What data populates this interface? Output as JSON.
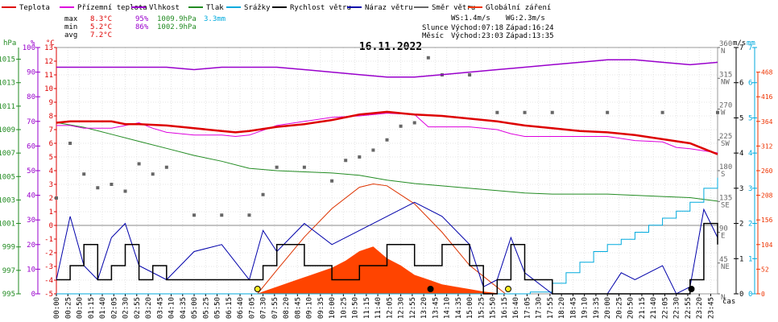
{
  "chart_data": {
    "type": "line",
    "title": "16.11.2022",
    "legend": [
      {
        "label": "Teplota",
        "color": "#dd0000"
      },
      {
        "label": "Přízemní teplota",
        "color": "#dd00dd"
      },
      {
        "label": "Vlhkost",
        "color": "#9900cc"
      },
      {
        "label": "Tlak",
        "color": "#228b22"
      },
      {
        "label": "Srážky",
        "color": "#00aadd"
      },
      {
        "label": "Rychlost větru",
        "color": "#000000"
      },
      {
        "label": "Náraz větru",
        "color": "#0000aa"
      },
      {
        "label": "Směr větru",
        "color": "#666666"
      },
      {
        "label": "Globální záření",
        "color": "#ee3300"
      }
    ],
    "stats": {
      "max_label": "max",
      "min_label": "min",
      "avg_label": "avg",
      "max_temp": "8.3°C",
      "max_hum": "95%",
      "max_press": "1009.9hPa",
      "max_rain": "3.3mm",
      "min_temp": "5.2°C",
      "min_hum": "86%",
      "min_press": "1002.9hPa",
      "avg_temp": "7.2°C"
    },
    "info": {
      "ws": "WS:1.4m/s",
      "wg": "WG:2.3m/s",
      "sun_label": "Slunce",
      "sun_rise": "Východ:07:18",
      "sun_set": "Západ:16:24",
      "moon_label": "Měsíc",
      "moon_rise": "Východ:23:03",
      "moon_set": "Západ:13:35"
    },
    "axes": {
      "hpa_unit": "hPa",
      "pct_unit": "%",
      "temp_unit": "°C",
      "ms_unit": "m/s",
      "mm_unit": "mm",
      "time_unit": "čas",
      "hpa_ticks": [
        "995",
        "997",
        "999",
        "1001",
        "1003",
        "1005",
        "1007",
        "1009",
        "1011",
        "1013",
        "1015"
      ],
      "pct_ticks": [
        "0",
        "10",
        "20",
        "30",
        "40",
        "50",
        "60",
        "70",
        "80",
        "90",
        "100"
      ],
      "temp_ticks": [
        "-5",
        "-4",
        "-3",
        "-2",
        "-1",
        "0",
        "1",
        "2",
        "3",
        "4",
        "5",
        "6",
        "7",
        "8",
        "9",
        "10",
        "11",
        "12",
        "13"
      ],
      "dir_ticks": [
        {
          "deg": "0",
          "dir": "N"
        },
        {
          "deg": "45",
          "dir": "NE"
        },
        {
          "deg": "90",
          "dir": "E"
        },
        {
          "deg": "135",
          "dir": "SE"
        },
        {
          "deg": "180",
          "dir": "S"
        },
        {
          "deg": "225",
          "dir": "SW"
        },
        {
          "deg": "270",
          "dir": "W"
        },
        {
          "deg": "315",
          "dir": "NW"
        },
        {
          "deg": "360",
          "dir": "N"
        }
      ],
      "ms_ticks": [
        "0",
        "1",
        "2",
        "3",
        "4",
        "5",
        "6",
        "7"
      ],
      "rad_ticks": [
        "0",
        "52",
        "104",
        "156",
        "208",
        "260",
        "312",
        "364",
        "416",
        "468"
      ],
      "time_ticks": [
        "00:00",
        "00:25",
        "00:50",
        "01:15",
        "01:40",
        "02:05",
        "02:30",
        "02:55",
        "03:20",
        "03:45",
        "04:10",
        "04:35",
        "05:00",
        "05:25",
        "05:50",
        "06:15",
        "06:40",
        "07:05",
        "07:30",
        "07:55",
        "08:20",
        "08:45",
        "09:10",
        "09:35",
        "10:00",
        "10:25",
        "10:50",
        "11:15",
        "11:40",
        "12:05",
        "12:30",
        "12:55",
        "13:20",
        "13:45",
        "14:10",
        "14:35",
        "15:00",
        "15:25",
        "15:50",
        "16:15",
        "16:40",
        "17:05",
        "17:30",
        "17:55",
        "18:20",
        "18:45",
        "19:10",
        "19:35",
        "20:00",
        "20:25",
        "20:50",
        "21:15",
        "21:40",
        "22:05",
        "22:30",
        "22:55",
        "23:20",
        "23:45"
      ]
    },
    "ranges": {
      "temp": [
        -5,
        13
      ],
      "hpa": [
        995,
        1016
      ],
      "pct": [
        0,
        100
      ],
      "ms": [
        0,
        7
      ],
      "deg": [
        0,
        360
      ],
      "rad": [
        0,
        520
      ],
      "hours": [
        0,
        24
      ]
    },
    "series_temp": [
      [
        0,
        7.5
      ],
      [
        0.5,
        7.6
      ],
      [
        1,
        7.6
      ],
      [
        2,
        7.6
      ],
      [
        2.5,
        7.4
      ],
      [
        3,
        7.4
      ],
      [
        4,
        7.3
      ],
      [
        5,
        7.1
      ],
      [
        6,
        6.9
      ],
      [
        6.5,
        6.8
      ],
      [
        7,
        6.9
      ],
      [
        8,
        7.2
      ],
      [
        9,
        7.4
      ],
      [
        10,
        7.7
      ],
      [
        11,
        8.1
      ],
      [
        11.5,
        8.2
      ],
      [
        12,
        8.3
      ],
      [
        12.5,
        8.2
      ],
      [
        13,
        8.1
      ],
      [
        14,
        8
      ],
      [
        15,
        7.8
      ],
      [
        16,
        7.6
      ],
      [
        17,
        7.3
      ],
      [
        18,
        7.1
      ],
      [
        19,
        6.9
      ],
      [
        20,
        6.8
      ],
      [
        21,
        6.6
      ],
      [
        22,
        6.3
      ],
      [
        23,
        6
      ],
      [
        23.5,
        5.6
      ],
      [
        24,
        5.2
      ]
    ],
    "series_ground": [
      [
        0,
        7.3
      ],
      [
        0.5,
        7.3
      ],
      [
        1,
        7.1
      ],
      [
        2,
        7.1
      ],
      [
        3,
        7.5
      ],
      [
        3.5,
        7.1
      ],
      [
        4,
        6.8
      ],
      [
        5,
        6.6
      ],
      [
        6,
        6.6
      ],
      [
        6.5,
        6.5
      ],
      [
        7,
        6.6
      ],
      [
        8,
        7.3
      ],
      [
        9,
        7.6
      ],
      [
        10,
        7.9
      ],
      [
        11,
        8
      ],
      [
        12,
        8.2
      ],
      [
        13,
        8.1
      ],
      [
        13.5,
        7.2
      ],
      [
        14,
        7.2
      ],
      [
        15,
        7.2
      ],
      [
        16,
        7
      ],
      [
        16.5,
        6.7
      ],
      [
        17,
        6.5
      ],
      [
        18,
        6.5
      ],
      [
        19,
        6.5
      ],
      [
        20,
        6.5
      ],
      [
        21,
        6.2
      ],
      [
        22,
        6.1
      ],
      [
        22.5,
        5.7
      ],
      [
        23,
        5.6
      ],
      [
        24,
        5.3
      ]
    ],
    "series_humidity": [
      [
        0,
        92
      ],
      [
        1,
        92
      ],
      [
        2,
        92
      ],
      [
        3,
        92
      ],
      [
        4,
        92
      ],
      [
        5,
        91
      ],
      [
        6,
        92
      ],
      [
        7,
        92
      ],
      [
        8,
        92
      ],
      [
        9,
        91
      ],
      [
        10,
        90
      ],
      [
        11,
        89
      ],
      [
        12,
        88
      ],
      [
        13,
        88
      ],
      [
        14,
        89
      ],
      [
        15,
        90
      ],
      [
        16,
        91
      ],
      [
        17,
        92
      ],
      [
        18,
        93
      ],
      [
        19,
        94
      ],
      [
        20,
        95
      ],
      [
        21,
        95
      ],
      [
        22,
        94
      ],
      [
        23,
        93
      ],
      [
        24,
        94
      ]
    ],
    "series_pressure": [
      [
        0,
        1009.6
      ],
      [
        1,
        1009.2
      ],
      [
        2,
        1008.6
      ],
      [
        3,
        1008
      ],
      [
        4,
        1007.4
      ],
      [
        5,
        1006.8
      ],
      [
        6,
        1006.3
      ],
      [
        7,
        1005.7
      ],
      [
        8,
        1005.5
      ],
      [
        9,
        1005.4
      ],
      [
        10,
        1005.3
      ],
      [
        11,
        1005.1
      ],
      [
        12,
        1004.7
      ],
      [
        13,
        1004.4
      ],
      [
        14,
        1004.2
      ],
      [
        15,
        1004
      ],
      [
        16,
        1003.8
      ],
      [
        17,
        1003.6
      ],
      [
        18,
        1003.5
      ],
      [
        19,
        1003.5
      ],
      [
        20,
        1003.5
      ],
      [
        21,
        1003.4
      ],
      [
        22,
        1003.3
      ],
      [
        23,
        1003.2
      ],
      [
        24,
        1002.9
      ]
    ],
    "series_rain": [
      [
        0,
        0
      ],
      [
        16.3,
        0
      ],
      [
        17.2,
        0.05
      ],
      [
        18,
        0.3
      ],
      [
        18.5,
        0.6
      ],
      [
        19,
        0.9
      ],
      [
        19.5,
        1.2
      ],
      [
        20,
        1.4
      ],
      [
        20.5,
        1.55
      ],
      [
        21,
        1.75
      ],
      [
        21.5,
        1.95
      ],
      [
        22,
        2.15
      ],
      [
        22.5,
        2.35
      ],
      [
        23,
        2.6
      ],
      [
        23.5,
        3
      ],
      [
        24,
        3.3
      ]
    ],
    "series_wind": [
      [
        0,
        0.4
      ],
      [
        0.5,
        0.8
      ],
      [
        1,
        1.4
      ],
      [
        1.5,
        0.4
      ],
      [
        2,
        0.8
      ],
      [
        2.5,
        1.4
      ],
      [
        3,
        0.4
      ],
      [
        3.5,
        0.8
      ],
      [
        4,
        0.4
      ],
      [
        5,
        0.4
      ],
      [
        6,
        0.4
      ],
      [
        7,
        0.4
      ],
      [
        7.5,
        0.8
      ],
      [
        8,
        1.4
      ],
      [
        9,
        0.8
      ],
      [
        10,
        0.4
      ],
      [
        11,
        0.8
      ],
      [
        12,
        1.4
      ],
      [
        13,
        0.8
      ],
      [
        14,
        1.4
      ],
      [
        15,
        0.8
      ],
      [
        15.5,
        0
      ],
      [
        16,
        0.4
      ],
      [
        16.5,
        1.4
      ],
      [
        17,
        0.4
      ],
      [
        18,
        0
      ],
      [
        22,
        0
      ],
      [
        23,
        0.4
      ],
      [
        23.5,
        2
      ],
      [
        24,
        1.4
      ]
    ],
    "series_gust": [
      [
        0,
        0.4
      ],
      [
        0.5,
        2.2
      ],
      [
        1,
        0.8
      ],
      [
        1.5,
        0.4
      ],
      [
        2,
        1.6
      ],
      [
        2.5,
        2
      ],
      [
        3,
        0.8
      ],
      [
        4,
        0.4
      ],
      [
        5,
        1.2
      ],
      [
        6,
        1.4
      ],
      [
        7,
        0.4
      ],
      [
        7.5,
        1.8
      ],
      [
        8,
        1.2
      ],
      [
        9,
        2
      ],
      [
        10,
        1.4
      ],
      [
        11,
        1.8
      ],
      [
        12,
        2.2
      ],
      [
        13,
        2.6
      ],
      [
        14,
        2.2
      ],
      [
        15,
        1.4
      ],
      [
        15.5,
        0.2
      ],
      [
        16,
        0.4
      ],
      [
        16.5,
        1.6
      ],
      [
        17,
        0.6
      ],
      [
        18,
        0
      ],
      [
        20,
        0
      ],
      [
        20.5,
        0.6
      ],
      [
        21,
        0.4
      ],
      [
        22,
        0.8
      ],
      [
        22.5,
        0
      ],
      [
        23,
        0.2
      ],
      [
        23.5,
        2.4
      ],
      [
        24,
        1.6
      ]
    ],
    "series_direction": [
      [
        0,
        140
      ],
      [
        0.5,
        220
      ],
      [
        1,
        175
      ],
      [
        1.5,
        155
      ],
      [
        2,
        160
      ],
      [
        2.5,
        150
      ],
      [
        3,
        190
      ],
      [
        3.5,
        175
      ],
      [
        4,
        185
      ],
      [
        5,
        115
      ],
      [
        6,
        115
      ],
      [
        7,
        115
      ],
      [
        7.5,
        145
      ],
      [
        8,
        185
      ],
      [
        9,
        185
      ],
      [
        10,
        165
      ],
      [
        10.5,
        195
      ],
      [
        11,
        200
      ],
      [
        11.5,
        210
      ],
      [
        12,
        225
      ],
      [
        12.5,
        245
      ],
      [
        13,
        250
      ],
      [
        13.5,
        345
      ],
      [
        14,
        320
      ],
      [
        15,
        320
      ],
      [
        16,
        265
      ],
      [
        17,
        265
      ],
      [
        18,
        265
      ],
      [
        20,
        265
      ],
      [
        22,
        265
      ],
      [
        24,
        265
      ]
    ],
    "series_radiation": [
      [
        0,
        0
      ],
      [
        7.3,
        0
      ],
      [
        7.5,
        5
      ],
      [
        8,
        15
      ],
      [
        8.5,
        25
      ],
      [
        9,
        35
      ],
      [
        9.5,
        45
      ],
      [
        10,
        55
      ],
      [
        10.5,
        70
      ],
      [
        11,
        90
      ],
      [
        11.5,
        100
      ],
      [
        12,
        75
      ],
      [
        12.5,
        60
      ],
      [
        13,
        40
      ],
      [
        13.5,
        30
      ],
      [
        14,
        20
      ],
      [
        14.5,
        15
      ],
      [
        15,
        10
      ],
      [
        15.5,
        5
      ],
      [
        16.2,
        0
      ],
      [
        24,
        0
      ]
    ],
    "theoretical_radiation": [
      [
        7.3,
        0
      ],
      [
        8,
        50
      ],
      [
        9,
        120
      ],
      [
        10,
        180
      ],
      [
        11,
        225
      ],
      [
        11.5,
        232
      ],
      [
        12,
        228
      ],
      [
        13,
        190
      ],
      [
        14,
        130
      ],
      [
        15,
        60
      ],
      [
        16.3,
        0
      ]
    ],
    "markers": [
      {
        "hour": 7.3,
        "label": "sunrise"
      },
      {
        "hour": 16.4,
        "label": "sunset"
      },
      {
        "hour": 13.58,
        "label": "moonset"
      },
      {
        "hour": 23.05,
        "label": "moonrise"
      }
    ]
  }
}
